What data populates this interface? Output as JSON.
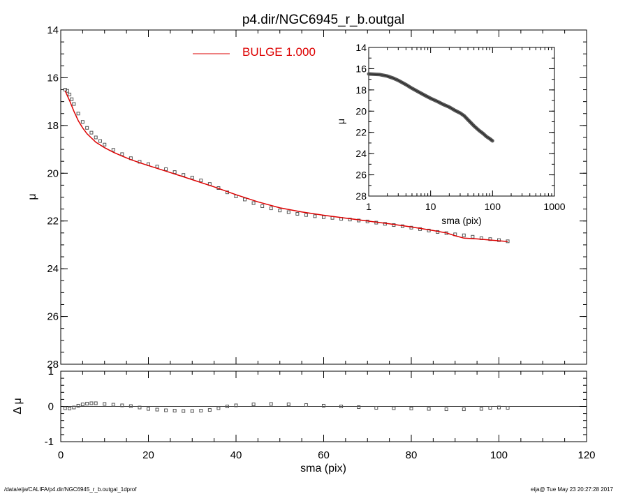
{
  "title": "p4.dir/NGC6945_r_b.outgal",
  "footer": {
    "left": "/data/eija/CALIFA/p4.dir/NGC6945_r_b.outgal_1dprof",
    "right": "eija@  Tue May 23 20:27:28 2017"
  },
  "colors": {
    "data": "#555555",
    "model": "#dd0000",
    "axes": "#000000"
  },
  "chart_data": [
    {
      "id": "main",
      "type": "scatter",
      "xlabel": "",
      "ylabel": "μ",
      "xlim": [
        0,
        120
      ],
      "ylim": [
        28,
        14
      ],
      "y_inverted": true,
      "xticks": [
        0,
        20,
        40,
        60,
        80,
        100,
        120
      ],
      "yticks": [
        14,
        16,
        18,
        20,
        22,
        24,
        26,
        28
      ],
      "legend": {
        "position": "top-center",
        "label": "BULGE  1.000",
        "color": "#dd0000"
      },
      "series": [
        {
          "name": "",
          "kind": "points",
          "x": [
            1,
            1.5,
            2,
            2.5,
            3,
            4,
            5,
            6,
            7,
            8,
            9,
            10,
            12,
            14,
            16,
            18,
            20,
            22,
            24,
            26,
            28,
            30,
            32,
            34,
            36,
            38,
            40,
            42,
            44,
            46,
            48,
            50,
            52,
            54,
            56,
            58,
            60,
            62,
            64,
            66,
            68,
            70,
            72,
            74,
            76,
            78,
            80,
            82,
            84,
            86,
            88,
            90,
            92,
            94,
            96,
            98,
            100,
            102
          ],
          "y": [
            16.5,
            16.55,
            16.7,
            16.9,
            17.1,
            17.5,
            17.85,
            18.1,
            18.3,
            18.5,
            18.65,
            18.8,
            19.02,
            19.2,
            19.37,
            19.52,
            19.62,
            19.72,
            19.83,
            19.95,
            20.07,
            20.18,
            20.3,
            20.45,
            20.62,
            20.8,
            20.97,
            21.1,
            21.25,
            21.38,
            21.47,
            21.56,
            21.63,
            21.7,
            21.75,
            21.8,
            21.84,
            21.87,
            21.91,
            21.94,
            21.98,
            22.02,
            22.07,
            22.12,
            22.17,
            22.22,
            22.28,
            22.34,
            22.4,
            22.46,
            22.51,
            22.56,
            22.6,
            22.66,
            22.72,
            22.76,
            22.8,
            22.85
          ]
        },
        {
          "name": "BULGE  1.000",
          "kind": "line",
          "x": [
            1,
            2,
            3,
            4,
            5,
            6,
            8,
            10,
            12,
            14,
            16,
            18,
            20,
            25,
            30,
            35,
            40,
            45,
            50,
            55,
            60,
            65,
            70,
            75,
            80,
            85,
            88,
            90,
            92,
            95,
            100,
            102
          ],
          "y": [
            16.55,
            16.95,
            17.4,
            17.8,
            18.1,
            18.35,
            18.7,
            18.93,
            19.12,
            19.28,
            19.43,
            19.56,
            19.68,
            19.97,
            20.27,
            20.57,
            20.9,
            21.2,
            21.45,
            21.62,
            21.76,
            21.88,
            22.0,
            22.12,
            22.25,
            22.4,
            22.5,
            22.62,
            22.72,
            22.75,
            22.83,
            22.86
          ]
        }
      ]
    },
    {
      "id": "residual",
      "type": "scatter",
      "xlabel": "sma (pix)",
      "ylabel": "Δ μ",
      "xlim": [
        0,
        120
      ],
      "ylim": [
        -1,
        1
      ],
      "xticks": [
        0,
        20,
        40,
        60,
        80,
        100,
        120
      ],
      "yticks": [
        -1,
        0,
        1
      ],
      "reference_line": 0,
      "series": [
        {
          "name": "",
          "kind": "points",
          "x": [
            1,
            2,
            3,
            4,
            5,
            6,
            7,
            8,
            10,
            12,
            14,
            16,
            18,
            20,
            22,
            24,
            26,
            28,
            30,
            32,
            34,
            36,
            38,
            40,
            44,
            48,
            52,
            56,
            60,
            64,
            68,
            72,
            76,
            80,
            84,
            88,
            92,
            96,
            98,
            100,
            102
          ],
          "y": [
            -0.05,
            -0.06,
            -0.03,
            0.02,
            0.06,
            0.08,
            0.09,
            0.09,
            0.07,
            0.05,
            0.03,
            0.01,
            -0.03,
            -0.07,
            -0.09,
            -0.11,
            -0.12,
            -0.13,
            -0.13,
            -0.12,
            -0.1,
            -0.05,
            0.0,
            0.03,
            0.06,
            0.07,
            0.06,
            0.04,
            0.02,
            0.0,
            -0.02,
            -0.04,
            -0.05,
            -0.06,
            -0.07,
            -0.08,
            -0.08,
            -0.07,
            -0.04,
            -0.03,
            -0.04
          ]
        }
      ]
    },
    {
      "id": "inset",
      "type": "line",
      "xlabel": "sma (pix)",
      "ylabel": "μ",
      "x_scale": "log",
      "xlim": [
        1,
        1000
      ],
      "ylim": [
        28,
        14
      ],
      "y_inverted": true,
      "xticks": [
        1,
        10,
        100,
        1000
      ],
      "xticklabels": [
        "1",
        "10",
        "100",
        "1000"
      ],
      "yticks": [
        14,
        16,
        18,
        20,
        22,
        24,
        26,
        28
      ],
      "series": [
        {
          "name": "",
          "kind": "thick-line",
          "x": [
            1,
            1.5,
            2,
            2.5,
            3,
            4,
            5,
            6,
            8,
            10,
            13,
            16,
            20,
            25,
            30,
            35,
            40,
            50,
            60,
            70,
            80,
            90,
            100
          ],
          "y": [
            16.5,
            16.55,
            16.7,
            16.9,
            17.1,
            17.5,
            17.85,
            18.1,
            18.5,
            18.8,
            19.1,
            19.37,
            19.62,
            19.95,
            20.18,
            20.45,
            20.8,
            21.38,
            21.8,
            22.1,
            22.4,
            22.6,
            22.8
          ]
        }
      ]
    }
  ]
}
